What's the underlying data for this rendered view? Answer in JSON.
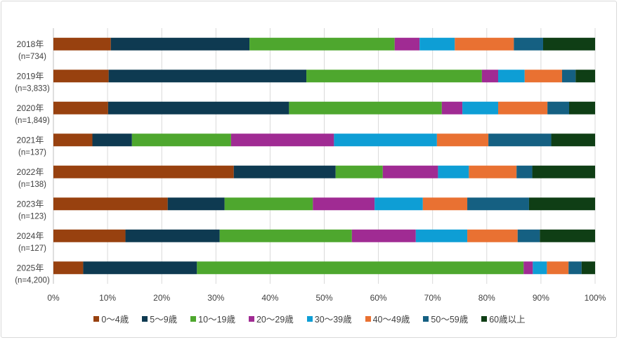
{
  "chart_data": {
    "type": "bar",
    "orientation": "horizontal",
    "stacked": "percent",
    "categories": [
      {
        "year": "2018年",
        "n": "(n=734)"
      },
      {
        "year": "2019年",
        "n": "(n=3,833)"
      },
      {
        "year": "2020年",
        "n": "(n=1,849)"
      },
      {
        "year": "2021年",
        "n": "(n=137)"
      },
      {
        "year": "2022年",
        "n": "(n=138)"
      },
      {
        "year": "2023年",
        "n": "(n=123)"
      },
      {
        "year": "2024年",
        "n": "(n=127)"
      },
      {
        "year": "2025年",
        "n": "(n=4,200)"
      }
    ],
    "series": [
      {
        "name": "0～4歳",
        "color": "#98410f",
        "values": [
          10.6,
          10.2,
          10.1,
          7.2,
          33.3,
          21.1,
          13.3,
          5.5
        ]
      },
      {
        "name": "5～9歳",
        "color": "#0e3a51",
        "values": [
          25.6,
          36.5,
          33.4,
          7.3,
          18.8,
          10.5,
          17.4,
          21.0
        ]
      },
      {
        "name": "10～19歳",
        "color": "#4ea72e",
        "values": [
          26.8,
          32.4,
          28.2,
          18.3,
          8.7,
          16.3,
          24.4,
          60.3
        ]
      },
      {
        "name": "20～29歳",
        "color": "#a02b93",
        "values": [
          4.6,
          3.0,
          3.8,
          19.0,
          10.2,
          11.4,
          11.8,
          1.7
        ]
      },
      {
        "name": "30～39歳",
        "color": "#0e9ed5",
        "values": [
          6.5,
          4.9,
          6.6,
          19.0,
          5.7,
          8.9,
          9.5,
          2.6
        ]
      },
      {
        "name": "40～49歳",
        "color": "#e97132",
        "values": [
          10.9,
          6.9,
          9.1,
          9.5,
          8.8,
          8.2,
          9.3,
          4.0
        ]
      },
      {
        "name": "50～59歳",
        "color": "#156082",
        "values": [
          5.4,
          2.5,
          4.0,
          11.6,
          2.9,
          11.4,
          4.1,
          2.4
        ]
      },
      {
        "name": "60歳以上",
        "color": "#0f3e15",
        "values": [
          9.6,
          3.6,
          4.8,
          8.1,
          11.6,
          12.2,
          10.2,
          2.5
        ]
      }
    ],
    "xlim": [
      0,
      100
    ],
    "xticks": [
      "0%",
      "10%",
      "20%",
      "30%",
      "40%",
      "50%",
      "60%",
      "70%",
      "80%",
      "90%",
      "100%"
    ],
    "grid": true,
    "legend": "bottom",
    "title": "",
    "xlabel": "",
    "ylabel": ""
  }
}
